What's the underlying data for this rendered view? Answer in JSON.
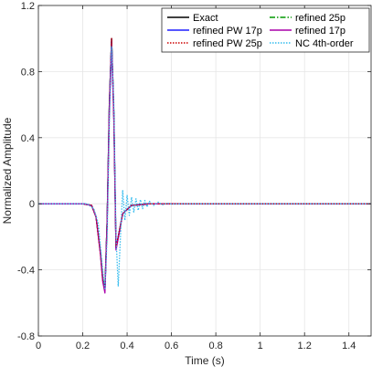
{
  "chart_data": {
    "type": "line",
    "xlabel": "Time (s)",
    "ylabel": "Normalized Amplitude",
    "xlim": [
      0,
      1.5
    ],
    "ylim": [
      -0.8,
      1.2
    ],
    "xticks": [
      "0",
      "0.2",
      "0.4",
      "0.6",
      "0.8",
      "1",
      "1.2",
      "1.4"
    ],
    "xtick_values": [
      0,
      0.2,
      0.4,
      0.6,
      0.8,
      1.0,
      1.2,
      1.4
    ],
    "yticks": [
      "-0.8",
      "-0.4",
      "0",
      "0.4",
      "0.8",
      "1.2"
    ],
    "ytick_values": [
      -0.8,
      -0.4,
      0,
      0.4,
      0.8,
      1.2
    ],
    "grid": true,
    "legend_position": "top-right",
    "series": [
      {
        "name": "Exact",
        "color": "#000000",
        "dash": "solid",
        "x": [
          0,
          0.2,
          0.24,
          0.26,
          0.28,
          0.29,
          0.3,
          0.31,
          0.32,
          0.33,
          0.34,
          0.35,
          0.36,
          0.38,
          0.42,
          0.5,
          1.5
        ],
        "y": [
          0,
          0,
          -0.01,
          -0.08,
          -0.3,
          -0.45,
          -0.52,
          -0.1,
          0.6,
          1.0,
          0.55,
          -0.26,
          -0.2,
          -0.06,
          -0.01,
          0,
          0
        ]
      },
      {
        "name": "refined 25p",
        "color": "#009900",
        "dash": "dashdot",
        "x": [
          0,
          0.2,
          0.24,
          0.26,
          0.28,
          0.29,
          0.3,
          0.31,
          0.32,
          0.33,
          0.34,
          0.35,
          0.36,
          0.38,
          0.42,
          0.5,
          1.5
        ],
        "y": [
          0,
          0,
          -0.01,
          -0.08,
          -0.3,
          -0.45,
          -0.52,
          -0.1,
          0.6,
          1.0,
          0.55,
          -0.27,
          -0.2,
          -0.06,
          -0.01,
          0,
          0
        ]
      },
      {
        "name": "refined PW 17p",
        "color": "#1f1fff",
        "dash": "solid",
        "x": [
          0,
          0.2,
          0.24,
          0.26,
          0.28,
          0.29,
          0.3,
          0.31,
          0.32,
          0.33,
          0.34,
          0.35,
          0.36,
          0.38,
          0.42,
          0.5,
          1.5
        ],
        "y": [
          0,
          0,
          -0.01,
          -0.08,
          -0.3,
          -0.46,
          -0.53,
          -0.1,
          0.6,
          1.0,
          0.55,
          -0.27,
          -0.2,
          -0.06,
          -0.01,
          0,
          0
        ]
      },
      {
        "name": "refined 17p",
        "color": "#aa00aa",
        "dash": "solid",
        "x": [
          0,
          0.2,
          0.24,
          0.26,
          0.28,
          0.29,
          0.3,
          0.31,
          0.32,
          0.33,
          0.34,
          0.35,
          0.36,
          0.38,
          0.42,
          0.5,
          1.5
        ],
        "y": [
          0,
          0,
          -0.01,
          -0.08,
          -0.31,
          -0.47,
          -0.54,
          -0.12,
          0.55,
          0.97,
          0.52,
          -0.28,
          -0.21,
          -0.06,
          -0.01,
          0,
          0
        ]
      },
      {
        "name": "refined PW 25p",
        "color": "#cc0000",
        "dash": "dotted",
        "x": [
          0,
          0.2,
          0.24,
          0.26,
          0.28,
          0.29,
          0.3,
          0.31,
          0.32,
          0.33,
          0.34,
          0.35,
          0.36,
          0.38,
          0.42,
          0.5,
          1.5
        ],
        "y": [
          0,
          0,
          -0.01,
          -0.08,
          -0.3,
          -0.45,
          -0.52,
          -0.1,
          0.6,
          1.0,
          0.55,
          -0.26,
          -0.2,
          -0.06,
          -0.01,
          0,
          0
        ]
      },
      {
        "name": "NC 4th-order",
        "color": "#33bbee",
        "dash": "dotted",
        "x": [
          0,
          0.22,
          0.25,
          0.27,
          0.29,
          0.3,
          0.31,
          0.32,
          0.33,
          0.34,
          0.35,
          0.36,
          0.37,
          0.38,
          0.39,
          0.4,
          0.41,
          0.42,
          0.43,
          0.44,
          0.45,
          0.46,
          0.47,
          0.48,
          0.49,
          0.5,
          0.52,
          0.54,
          0.56,
          0.58,
          0.6,
          0.65,
          1.5
        ],
        "y": [
          0,
          0,
          -0.03,
          -0.12,
          -0.4,
          -0.52,
          -0.2,
          0.5,
          0.95,
          0.6,
          -0.2,
          -0.5,
          -0.2,
          0.08,
          -0.1,
          0.05,
          -0.07,
          0.04,
          -0.05,
          0.03,
          -0.04,
          0.025,
          -0.03,
          0.02,
          -0.02,
          0.015,
          -0.01,
          0.01,
          -0.006,
          0.004,
          -0.002,
          0,
          0
        ]
      }
    ],
    "legend_order": [
      0,
      1,
      2,
      3,
      4,
      5
    ]
  }
}
